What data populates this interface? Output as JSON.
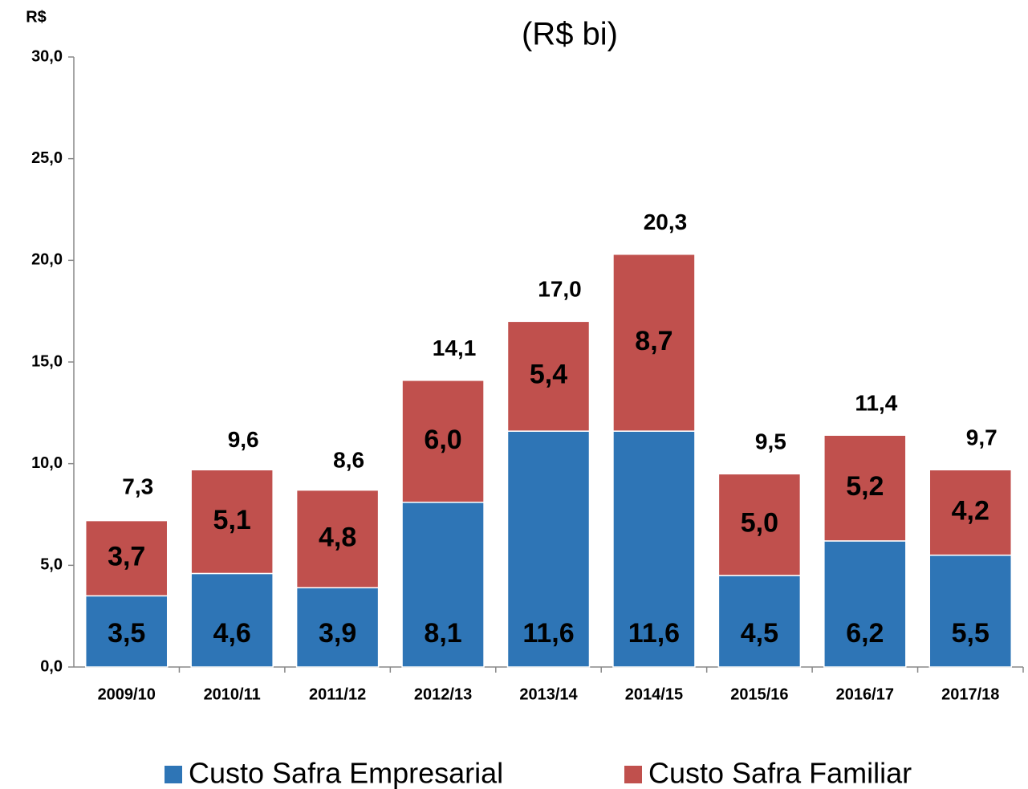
{
  "chart_data": {
    "type": "bar",
    "stacked": true,
    "title": "(R$ bi)",
    "y_label": "R$",
    "categories": [
      "2009/10",
      "2010/11",
      "2011/12",
      "2012/13",
      "2013/14",
      "2014/15",
      "2015/16",
      "2016/17",
      "2017/18"
    ],
    "series": [
      {
        "name": "Custo Safra Empresarial",
        "color": "#2e75b6",
        "values": [
          3.5,
          4.6,
          3.9,
          8.1,
          11.6,
          11.6,
          4.5,
          6.2,
          5.5
        ],
        "value_labels": [
          "3,5",
          "4,6",
          "3,9",
          "8,1",
          "11,6",
          "11,6",
          "4,5",
          "6,2",
          "5,5"
        ]
      },
      {
        "name": "Custo Safra Familiar",
        "color": "#c0504d",
        "values": [
          3.7,
          5.1,
          4.8,
          6.0,
          5.4,
          8.7,
          5.0,
          5.2,
          4.2
        ],
        "value_labels": [
          "3,7",
          "5,1",
          "4,8",
          "6,0",
          "5,4",
          "8,7",
          "5,0",
          "5,2",
          "4,2"
        ]
      }
    ],
    "totals": {
      "values": [
        7.3,
        9.6,
        8.6,
        14.1,
        17.0,
        20.3,
        9.5,
        11.4,
        9.7
      ],
      "value_labels": [
        "7,3",
        "9,6",
        "8,6",
        "14,1",
        "17,0",
        "20,3",
        "9,5",
        "11,4",
        "9,7"
      ]
    },
    "ylim": [
      0,
      30
    ],
    "yticks": [
      {
        "value": 0,
        "label": "0,0"
      },
      {
        "value": 5,
        "label": "5,0"
      },
      {
        "value": 10,
        "label": "10,0"
      },
      {
        "value": 15,
        "label": "15,0"
      },
      {
        "value": 20,
        "label": "20,0"
      },
      {
        "value": 25,
        "label": "25,0"
      },
      {
        "value": 30,
        "label": "30,0"
      }
    ],
    "grid": false,
    "legend": "bottom"
  }
}
